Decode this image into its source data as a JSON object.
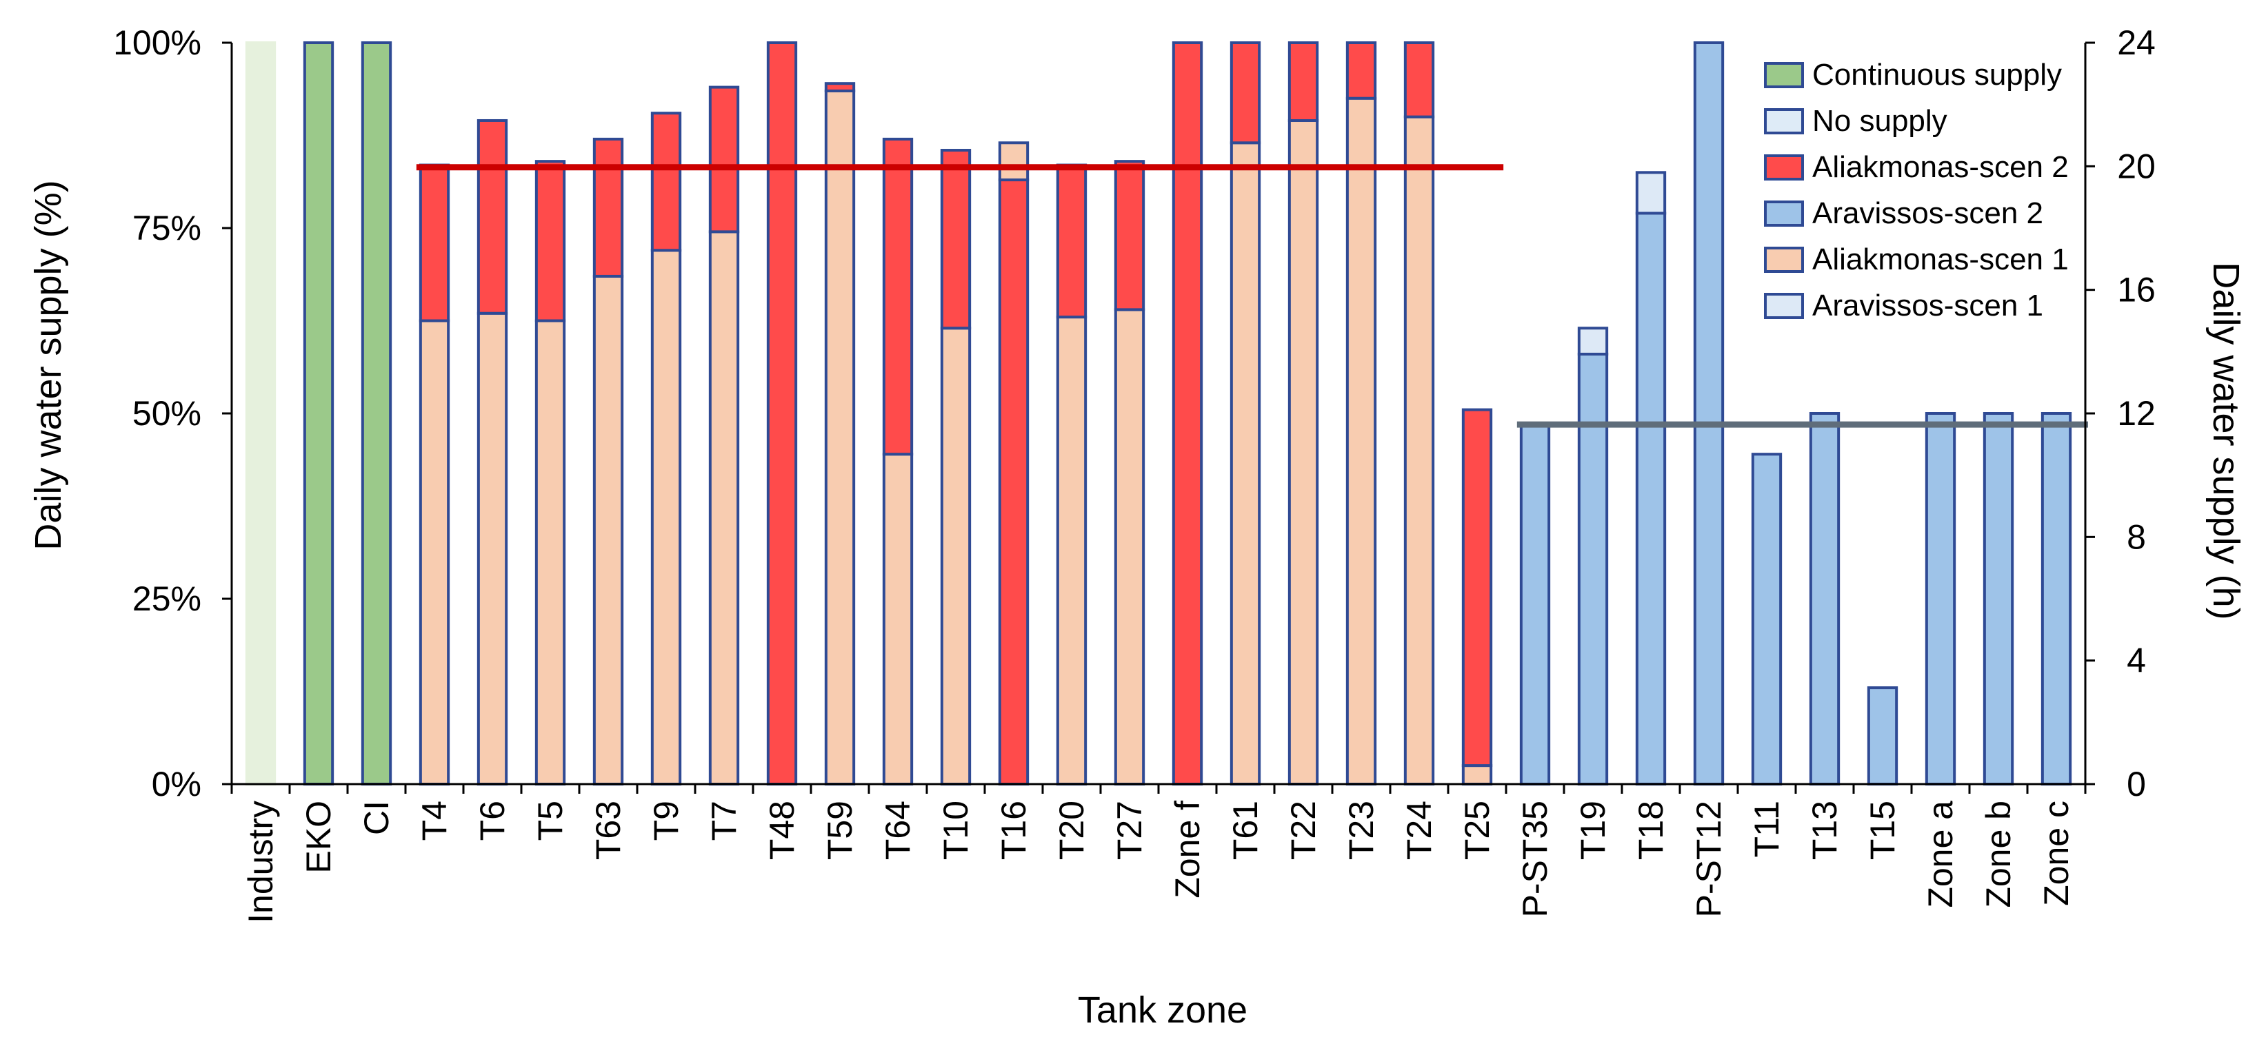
{
  "chart_data": {
    "type": "bar",
    "title": "",
    "xlabel": "Tank zone",
    "ylabel_left": "Daily water supply (%)",
    "ylabel_right": "Daily water supply (h)",
    "ylim_left": [
      0,
      100
    ],
    "ylim_right": [
      0,
      24
    ],
    "left_ticks": [
      "0%",
      "25%",
      "50%",
      "75%",
      "100%"
    ],
    "left_tick_values": [
      0,
      25,
      50,
      75,
      100
    ],
    "right_ticks": [
      "0",
      "4",
      "8",
      "12",
      "16",
      "20",
      "24"
    ],
    "right_tick_values": [
      0,
      4,
      8,
      12,
      16,
      20,
      24
    ],
    "grid": false,
    "legend_position": "top-right",
    "colors": {
      "continuous": "#9bc98a",
      "continuous_light": "#e6f1dd",
      "no_supply": "#deebf7",
      "aliakmonas_2": "#ff4b4b",
      "aravissos_2": "#9ec3e8",
      "aliakmonas_1": "#f8ccb0",
      "aravissos_1": "#dde9f6",
      "outline": "#2f4a94",
      "red_line": "#cc0000",
      "grey_line": "#5f6d7a"
    },
    "legend": [
      {
        "label": "Continuous supply",
        "color": "#9bc98a"
      },
      {
        "label": "No supply",
        "color": "#deebf7"
      },
      {
        "label": "Aliakmonas-scen 2",
        "color": "#ff4b4b"
      },
      {
        "label": "Aravissos-scen 2",
        "color": "#9ec3e8"
      },
      {
        "label": "Aliakmonas-scen 1",
        "color": "#f8ccb0"
      },
      {
        "label": "Aravissos-scen 1",
        "color": "#dde9f6"
      }
    ],
    "categories": [
      "Industry",
      "EKO",
      "CI",
      "T4",
      "T6",
      "T5",
      "T63",
      "T9",
      "T7",
      "T48",
      "T59",
      "T64",
      "T10",
      "T16",
      "T20",
      "T27",
      "Zone f",
      "T61",
      "T22",
      "T23",
      "T24",
      "T25",
      "P-ST35",
      "T19",
      "T18",
      "P-ST12",
      "T11",
      "T13",
      "T15",
      "Zone a",
      "Zone b",
      "Zone c"
    ],
    "bars": [
      {
        "category": "Industry",
        "kind": "continuous_light",
        "scen1": 100,
        "scen2": 100
      },
      {
        "category": "EKO",
        "kind": "continuous",
        "scen1": 100,
        "scen2": 100
      },
      {
        "category": "CI",
        "kind": "continuous",
        "scen1": 100,
        "scen2": 100
      },
      {
        "category": "T4",
        "kind": "aliakmonas",
        "scen1": 62.5,
        "scen2": 83.5
      },
      {
        "category": "T6",
        "kind": "aliakmonas",
        "scen1": 63.5,
        "scen2": 89.5
      },
      {
        "category": "T5",
        "kind": "aliakmonas",
        "scen1": 62.5,
        "scen2": 84
      },
      {
        "category": "T63",
        "kind": "aliakmonas",
        "scen1": 68.5,
        "scen2": 87
      },
      {
        "category": "T9",
        "kind": "aliakmonas",
        "scen1": 72,
        "scen2": 90.5
      },
      {
        "category": "T7",
        "kind": "aliakmonas",
        "scen1": 74.5,
        "scen2": 94
      },
      {
        "category": "T48",
        "kind": "aliakmonas",
        "scen1": 0,
        "scen2": 100
      },
      {
        "category": "T59",
        "kind": "aliakmonas",
        "scen1": 93.5,
        "scen2": 94.5
      },
      {
        "category": "T64",
        "kind": "aliakmonas",
        "scen1": 44.5,
        "scen2": 87
      },
      {
        "category": "T10",
        "kind": "aliakmonas",
        "scen1": 61.5,
        "scen2": 85.5
      },
      {
        "category": "T16",
        "kind": "aliakmonas",
        "scen1": 86.5,
        "scen2": 81.5
      },
      {
        "category": "T20",
        "kind": "aliakmonas",
        "scen1": 63,
        "scen2": 83.5
      },
      {
        "category": "T27",
        "kind": "aliakmonas",
        "scen1": 64,
        "scen2": 84
      },
      {
        "category": "Zone f",
        "kind": "aliakmonas",
        "scen1": 0,
        "scen2": 100
      },
      {
        "category": "T61",
        "kind": "aliakmonas",
        "scen1": 86.5,
        "scen2": 100
      },
      {
        "category": "T22",
        "kind": "aliakmonas",
        "scen1": 89.5,
        "scen2": 100
      },
      {
        "category": "T23",
        "kind": "aliakmonas",
        "scen1": 92.5,
        "scen2": 100
      },
      {
        "category": "T24",
        "kind": "aliakmonas",
        "scen1": 90,
        "scen2": 100
      },
      {
        "category": "T25",
        "kind": "aliakmonas",
        "scen1": 2.5,
        "scen2": 50.5
      },
      {
        "category": "P-ST35",
        "kind": "aravissos",
        "scen1": 48.5,
        "scen2": 48.5
      },
      {
        "category": "T19",
        "kind": "aravissos",
        "scen1": 61.5,
        "scen2": 58
      },
      {
        "category": "T18",
        "kind": "aravissos",
        "scen1": 82.5,
        "scen2": 77
      },
      {
        "category": "P-ST12",
        "kind": "aravissos",
        "scen1": 100,
        "scen2": 100
      },
      {
        "category": "T11",
        "kind": "aravissos",
        "scen1": 44.5,
        "scen2": 44.5
      },
      {
        "category": "T13",
        "kind": "aravissos",
        "scen1": 50,
        "scen2": 50
      },
      {
        "category": "T15",
        "kind": "aravissos",
        "scen1": 13,
        "scen2": 13
      },
      {
        "category": "Zone a",
        "kind": "aravissos",
        "scen1": 50,
        "scen2": 50
      },
      {
        "category": "Zone b",
        "kind": "aravissos",
        "scen1": 50,
        "scen2": 50
      },
      {
        "category": "Zone c",
        "kind": "aravissos",
        "scen1": 50,
        "scen2": 50
      }
    ],
    "reference_lines": [
      {
        "name": "aliakmonas-average-line",
        "from": "T4",
        "to": "T25",
        "value": 83.2,
        "color": "#cc0000"
      },
      {
        "name": "aravissos-average-line",
        "from": "P-ST35",
        "to": "Zone c",
        "value": 48.5,
        "color": "#5f6d7a"
      }
    ]
  }
}
